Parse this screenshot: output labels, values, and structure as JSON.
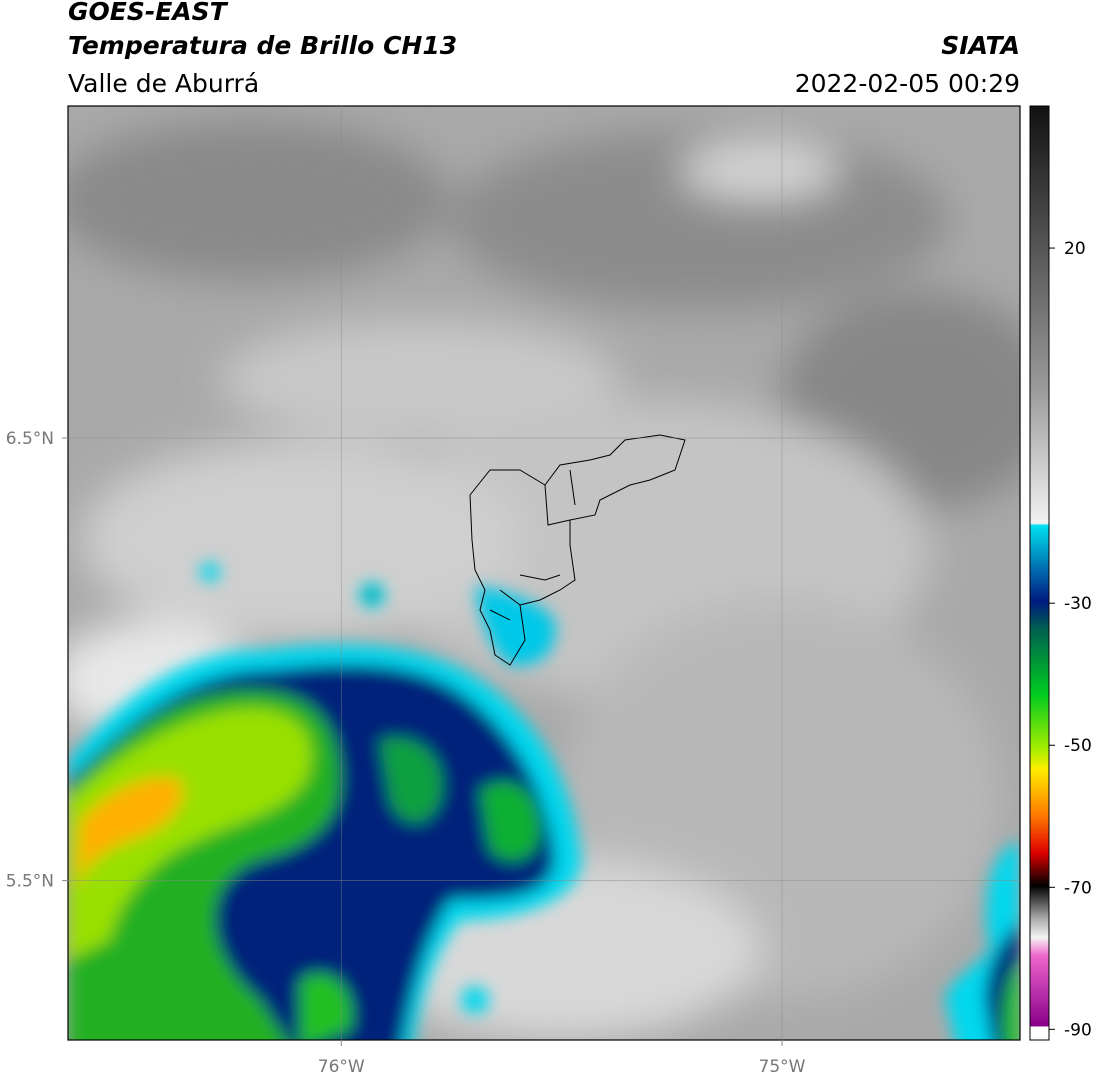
{
  "header": {
    "title": "GOES-EAST",
    "subtitle": "Temperatura de Brillo CH13",
    "region": "Valle de Aburrá",
    "source": "SIATA",
    "datetime": "2022-02-05 00:29"
  },
  "map": {
    "xlim": [
      -76.62,
      -74.46
    ],
    "ylim": [
      5.14,
      7.25
    ],
    "xticks": [
      {
        "value": -76,
        "label": "76°W"
      },
      {
        "value": -75,
        "label": "75°W"
      }
    ],
    "yticks": [
      {
        "value": 6.5,
        "label": "6.5°N"
      },
      {
        "value": 5.5,
        "label": "5.5°N"
      }
    ],
    "grid": true
  },
  "colorbar": {
    "lim": [
      -91.5,
      40
    ],
    "ticks": [
      20,
      -30,
      -50,
      -70,
      -90
    ]
  }
}
